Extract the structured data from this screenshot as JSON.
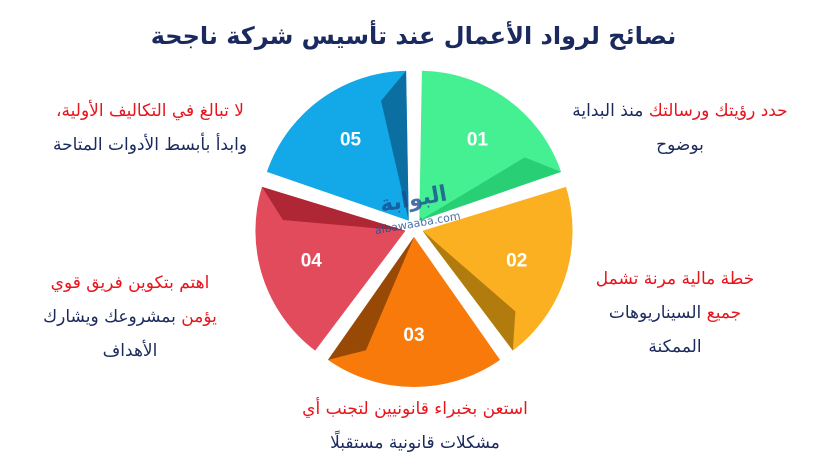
{
  "title": "نصائح لرواد الأعمال عند تأسيس شركة ناجحة",
  "colors": {
    "highlight": "#e8141c",
    "text": "#1b2a5e"
  },
  "watermark": {
    "arabic": "البوابة",
    "latin": "albawaaba.com"
  },
  "slices": [
    {
      "number": "01",
      "color": "#45f093",
      "dark": "#1fc46a"
    },
    {
      "number": "02",
      "color": "#fbb021",
      "dark": "#9a6a08"
    },
    {
      "number": "03",
      "color": "#f77a0a",
      "dark": "#7a3a05"
    },
    {
      "number": "04",
      "color": "#e24b5b",
      "dark": "#9e1a28"
    },
    {
      "number": "05",
      "color": "#13a8e8",
      "dark": "#0a5e8a"
    }
  ],
  "tips": [
    {
      "red": "حدد رؤيتك ورسالتك",
      "line1_rest": " منذ البداية",
      "line2": "بوضوح"
    },
    {
      "line1": "خطة مالية مرنة تشمل",
      "line2_red": "جميع",
      "line2_rest": " السيناريوهات",
      "line3": "الممكنة"
    },
    {
      "line1": "استعن بخبراء قانونيين لتجنب أي",
      "line2": "مشكلات قانونية مستقبلًا"
    },
    {
      "line1": "اهتم بتكوين فريق قوي",
      "line2_red": "يؤمن",
      "line2_rest": " بمشروعك ويشارك",
      "line3": "الأهداف"
    },
    {
      "line1": "لا تبالغ في التكاليف الأولية،",
      "line2": "وابدأ بأبسط الأدوات المتاحة"
    }
  ]
}
